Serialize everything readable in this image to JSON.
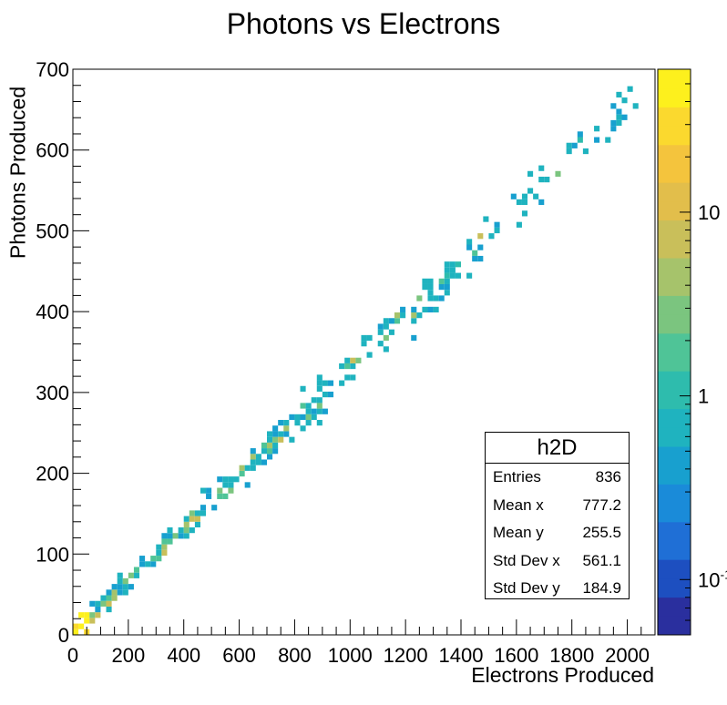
{
  "chart_data": {
    "type": "heatmap",
    "title": "Photons vs Electrons",
    "xlabel": "Electrons Produced",
    "ylabel": "Photons Produced",
    "xlim": [
      0,
      2100
    ],
    "ylim": [
      0,
      700
    ],
    "x_ticks": [
      "0",
      "200",
      "400",
      "600",
      "800",
      "1000",
      "1200",
      "1400",
      "1600",
      "1800",
      "2000"
    ],
    "y_ticks": [
      "0",
      "100",
      "200",
      "300",
      "400",
      "500",
      "600",
      "700"
    ],
    "colorbar": {
      "scale": "log",
      "ticks": [
        "10",
        "1",
        "10"
      ],
      "tick_exponents": [
        "",
        "",
        "-1"
      ],
      "range": [
        0.05,
        60
      ]
    },
    "trend": {
      "slope": 0.329,
      "intercept": 0,
      "x_range": [
        0,
        2100
      ]
    },
    "stats": {
      "name": "h2D",
      "rows": [
        {
          "key": "Entries",
          "value": "836"
        },
        {
          "key": "Mean x",
          "value": "777.2"
        },
        {
          "key": "Mean y",
          "value": "255.5"
        },
        {
          "key": "Std Dev x",
          "value": "561.1"
        },
        {
          "key": "Std Dev y",
          "value": "184.9"
        }
      ]
    }
  }
}
